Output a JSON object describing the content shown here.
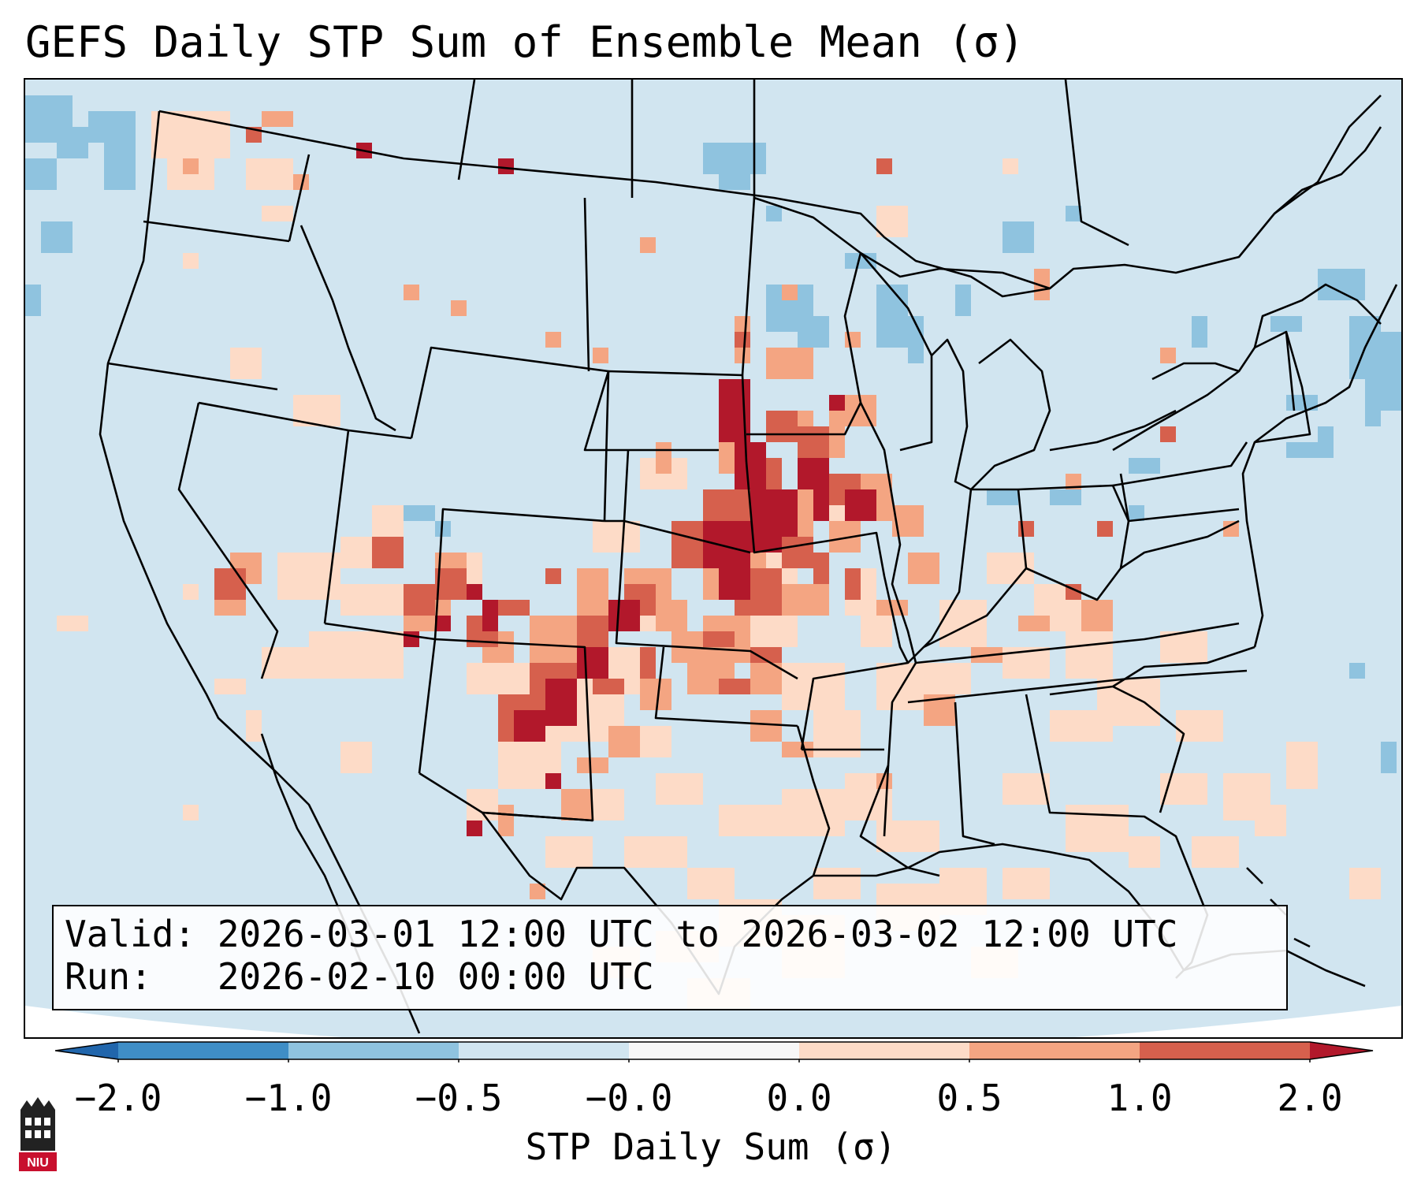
{
  "title": "GEFS Daily STP Sum of Ensemble Mean (σ)",
  "info": {
    "valid_line": "Valid: 2026-03-01 12:00 UTC to 2026-03-02 12:00 UTC",
    "run_line": "Run:   2026-02-10 00:00 UTC"
  },
  "colorbar": {
    "label": "STP Daily Sum (σ)",
    "ticks": [
      "−2.0",
      "−1.0",
      "−0.5",
      "−0.0",
      "0.0",
      "0.5",
      "1.0",
      "2.0"
    ],
    "colors": [
      "#3f8ec6",
      "#8fc3df",
      "#d1e5f0",
      "#f7f7f7",
      "#fddbc7",
      "#f4a582",
      "#d6604d",
      "#b2182b"
    ],
    "extend_colors": {
      "low": "#2166ac",
      "high": "#b2182b"
    }
  },
  "map": {
    "projection": "Lambert conformal, CONUS",
    "base_color": "#d1e5f0",
    "legend_categories": {
      "neg2": "#3f8ec6",
      "neg1": "#8fc3df",
      "neg05": "#d1e5f0",
      "zero": "#f7f7f7",
      "pos0": "#fddbc7",
      "pos05": "#f4a582",
      "pos1": "#d6604d",
      "pos2": "#b2182b"
    }
  },
  "logo": {
    "text": "NIU",
    "color": "#c8102e"
  }
}
